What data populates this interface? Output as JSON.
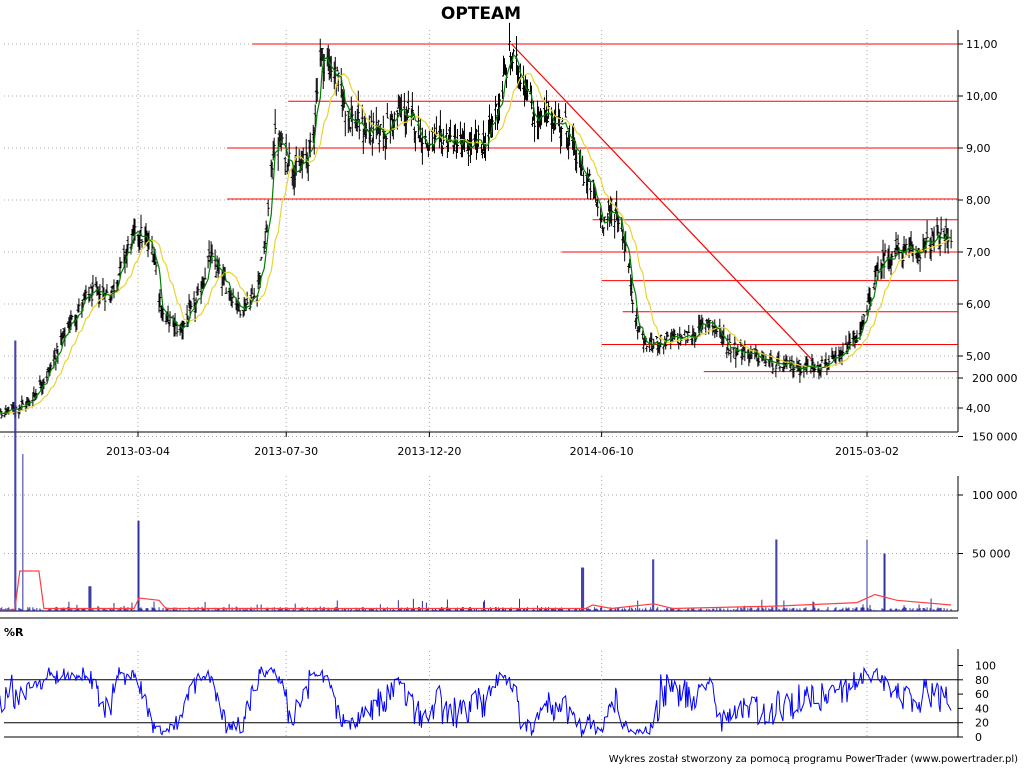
{
  "chart_data": [
    {
      "type": "ohlc",
      "title": "OPTEAM",
      "x_range": [
        "2012-09-28",
        "2015-05-25"
      ],
      "ylim": [
        3.6,
        11.1
      ],
      "y_ticks": [
        4,
        5,
        6,
        7,
        8,
        9,
        10,
        11
      ],
      "y_tick_labels": [
        "4,00",
        "5,00",
        "6,00",
        "7,00",
        "8,00",
        "9,00",
        "10,00",
        "11,00"
      ],
      "x_ticks": [
        "2013-03-04",
        "2013-07-30",
        "2013-12-20",
        "2014-06-10",
        "2015-03-02"
      ],
      "grid": true,
      "price_path": [
        [
          "2012-09-28",
          3.9
        ],
        [
          "2012-10-20",
          3.9
        ],
        [
          "2012-11-15",
          4.1
        ],
        [
          "2012-12-05",
          4.7
        ],
        [
          "2012-12-25",
          5.6
        ],
        [
          "2013-01-15",
          6.2
        ],
        [
          "2013-02-05",
          6.2
        ],
        [
          "2013-02-25",
          7.2
        ],
        [
          "2013-03-04",
          7.4
        ],
        [
          "2013-03-20",
          7.0
        ],
        [
          "2013-03-28",
          5.8
        ],
        [
          "2013-04-15",
          5.5
        ],
        [
          "2013-05-01",
          6.0
        ],
        [
          "2013-05-15",
          6.9
        ],
        [
          "2013-05-30",
          6.4
        ],
        [
          "2013-06-15",
          5.9
        ],
        [
          "2013-06-30",
          6.2
        ],
        [
          "2013-07-10",
          7.3
        ],
        [
          "2013-07-18",
          9.2
        ],
        [
          "2013-07-30",
          8.9
        ],
        [
          "2013-08-10",
          8.5
        ],
        [
          "2013-08-25",
          9.0
        ],
        [
          "2013-09-01",
          10.8
        ],
        [
          "2013-09-15",
          10.5
        ],
        [
          "2013-10-01",
          9.6
        ],
        [
          "2013-10-20",
          9.3
        ],
        [
          "2013-11-05",
          9.3
        ],
        [
          "2013-11-20",
          9.7
        ],
        [
          "2013-12-05",
          9.5
        ],
        [
          "2013-12-20",
          9.0
        ],
        [
          "2014-01-05",
          9.2
        ],
        [
          "2014-01-25",
          9.0
        ],
        [
          "2014-02-15",
          9.1
        ],
        [
          "2014-03-01",
          10.0
        ],
        [
          "2014-03-10",
          10.8
        ],
        [
          "2014-03-25",
          10.3
        ],
        [
          "2014-04-05",
          9.5
        ],
        [
          "2014-04-20",
          9.6
        ],
        [
          "2014-05-05",
          9.4
        ],
        [
          "2014-05-20",
          8.6
        ],
        [
          "2014-06-01",
          8.2
        ],
        [
          "2014-06-10",
          7.6
        ],
        [
          "2014-06-25",
          7.8
        ],
        [
          "2014-07-05",
          7.0
        ],
        [
          "2014-07-15",
          5.6
        ],
        [
          "2014-07-25",
          5.2
        ],
        [
          "2014-08-15",
          5.3
        ],
        [
          "2014-09-10",
          5.4
        ],
        [
          "2014-09-25",
          5.7
        ],
        [
          "2014-10-15",
          5.2
        ],
        [
          "2014-11-10",
          5.0
        ],
        [
          "2014-12-05",
          4.8
        ],
        [
          "2015-01-05",
          4.8
        ],
        [
          "2015-02-01",
          4.9
        ],
        [
          "2015-02-15",
          5.3
        ],
        [
          "2015-02-25",
          5.5
        ],
        [
          "2015-03-10",
          6.5
        ],
        [
          "2015-03-20",
          6.9
        ],
        [
          "2015-04-01",
          7.0
        ],
        [
          "2015-04-20",
          7.0
        ],
        [
          "2015-05-05",
          7.2
        ],
        [
          "2015-05-20",
          7.3
        ]
      ],
      "series": [
        {
          "kind": "ohlc-bars",
          "color": "#000000"
        },
        {
          "kind": "moving-average-short",
          "color": "#008000",
          "window": 5
        },
        {
          "kind": "moving-average-long",
          "color": "#e8d430",
          "window": 20
        }
      ],
      "horizontal_lines": [
        {
          "y": 11.0,
          "x_start": "2013-06-26"
        },
        {
          "y": 9.9,
          "x_start": "2013-08-01"
        },
        {
          "y": 9.0,
          "x_start": "2013-06-01"
        },
        {
          "y": 8.02,
          "x_start": "2013-06-01"
        },
        {
          "y": 7.62,
          "x_start": "2014-06-01"
        },
        {
          "y": 7.0,
          "x_start": "2014-05-01"
        },
        {
          "y": 6.45,
          "x_start": "2014-06-10"
        },
        {
          "y": 5.85,
          "x_start": "2014-07-01"
        },
        {
          "y": 5.22,
          "x_start": "2014-06-10"
        },
        {
          "y": 4.7,
          "x_start": "2014-09-20"
        }
      ],
      "trend_line": {
        "from": [
          "2014-03-12",
          11.0
        ],
        "to": [
          "2015-01-05",
          4.95
        ]
      },
      "line_color": "#ff0000"
    },
    {
      "type": "bar",
      "name": "volume",
      "ylim": [
        0,
        240000
      ],
      "y_ticks": [
        50000,
        100000,
        150000,
        200000
      ],
      "y_tick_labels": [
        "50 000",
        "100 000",
        "150 000",
        "200 000"
      ],
      "bar_color": "#3030a0",
      "average_color": "#ff4040",
      "spikes": [
        [
          "2012-11-02",
          232000
        ],
        [
          "2012-11-10",
          135000
        ],
        [
          "2013-03-04",
          78000
        ],
        [
          "2014-05-22",
          38000
        ],
        [
          "2014-12-01",
          62000
        ],
        [
          "2015-03-01",
          62000
        ],
        [
          "2015-03-20",
          50000
        ],
        [
          "2014-08-01",
          45000
        ],
        [
          "2013-01-15",
          22000
        ]
      ],
      "average_path": [
        [
          "2012-09-28",
          2000
        ],
        [
          "2012-11-01",
          2000
        ],
        [
          "2012-11-06",
          35000
        ],
        [
          "2012-11-25",
          35000
        ],
        [
          "2012-11-30",
          3000
        ],
        [
          "2013-02-28",
          3000
        ],
        [
          "2013-03-05",
          12000
        ],
        [
          "2013-03-25",
          10000
        ],
        [
          "2013-04-01",
          3000
        ],
        [
          "2014-05-25",
          3000
        ],
        [
          "2014-06-01",
          6000
        ],
        [
          "2014-06-20",
          3000
        ],
        [
          "2014-08-01",
          7000
        ],
        [
          "2014-08-20",
          3000
        ],
        [
          "2014-12-01",
          5000
        ],
        [
          "2015-02-20",
          8000
        ],
        [
          "2015-03-10",
          15000
        ],
        [
          "2015-04-01",
          10000
        ],
        [
          "2015-05-25",
          6000
        ]
      ]
    },
    {
      "type": "line",
      "name": "%R",
      "label": "%R",
      "ylim": [
        0,
        100
      ],
      "y_ticks": [
        0,
        20,
        40,
        60,
        80,
        100
      ],
      "y_tick_labels": [
        "0",
        "20",
        "40",
        "60",
        "80",
        "100"
      ],
      "reference_lines": [
        20,
        80
      ],
      "color": "#0000ff"
    }
  ],
  "footer": "Wykres został stworzony za pomocą programu PowerTrader (www.powertrader.pl)"
}
